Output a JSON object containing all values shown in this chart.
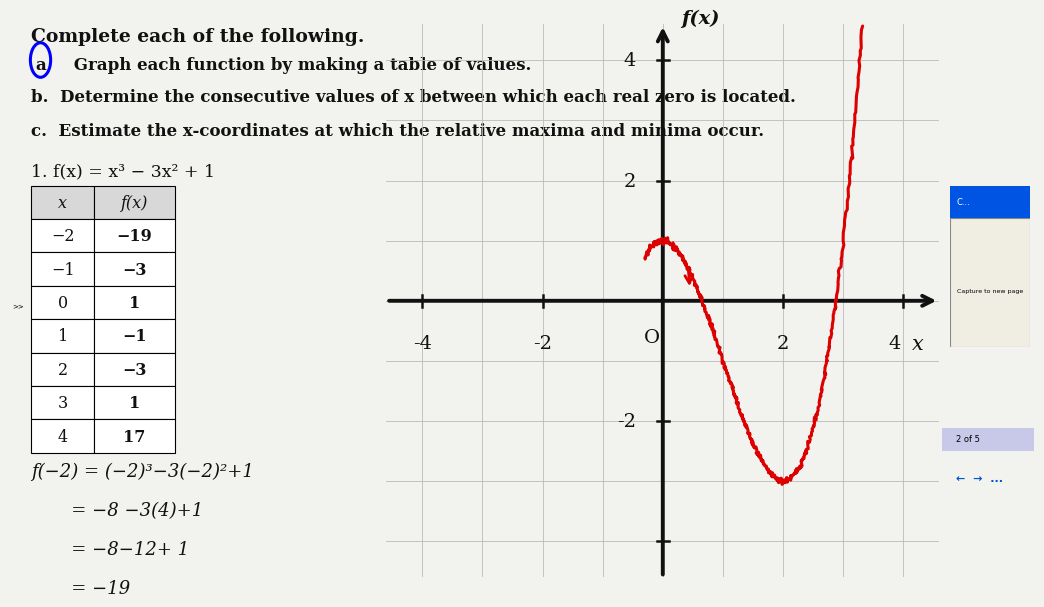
{
  "title_text": "Complete each of the following.",
  "item_a": "a.  Graph each function by making a table of values.",
  "item_b": "b.  Determine the consecutive values of x between which each real zero is located.",
  "item_c": "c.  Estimate the x-coordinates at which the relative maxima and minima occur.",
  "function_label": "1. f(x) = x³ − 3x² + 1",
  "table_headers": [
    "x",
    "f(x)"
  ],
  "table_data": [
    [
      "−2",
      "−19"
    ],
    [
      "−1",
      "−3"
    ],
    [
      "0",
      "1"
    ],
    [
      "1",
      "−1"
    ],
    [
      "2",
      "−3"
    ],
    [
      "3",
      "1"
    ],
    [
      "4",
      "17"
    ]
  ],
  "calc_line1": "f(−2) = (−2)³−3(−2)²+1",
  "calc_line2": "       = −8 −3(4)+1",
  "calc_line3": "       = −8−12+ 1",
  "calc_line4": "       = −19",
  "graph_xlim": [
    -4.6,
    4.6
  ],
  "graph_ylim": [
    -4.6,
    4.6
  ],
  "curve_color": "#dd0000",
  "curve_lw": 2.2,
  "bg_color": "#f2f2ee",
  "graph_bg": "#ffffff",
  "grid_color": "#bbbbbb",
  "axis_color": "#111111",
  "text_color": "#111111"
}
